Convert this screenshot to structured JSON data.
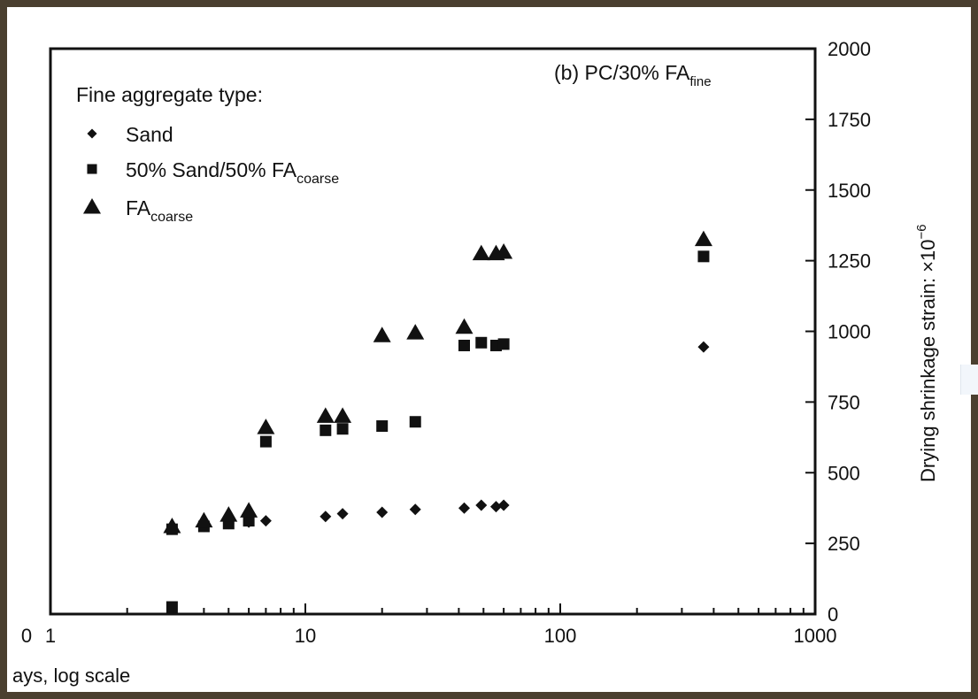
{
  "chart_data": {
    "type": "scatter",
    "title": "(b) PC/30% FA",
    "title_sub": "fine",
    "legend_title": "Fine aggregate type:",
    "legend_position": "top-left",
    "xlabel": "ays, log scale",
    "ylabel": "Drying shrinkage strain: ×10",
    "ylabel_exp": "−6",
    "x_scale": "log",
    "xlim": [
      1,
      1000
    ],
    "ylim": [
      0,
      2000
    ],
    "grid": false,
    "x_tick_labels": [
      "1",
      "10",
      "100",
      "1000"
    ],
    "x_left_cut_label": "0",
    "y_tick_labels": [
      "0",
      "250",
      "500",
      "750",
      "1000",
      "1250",
      "1500",
      "1750",
      "2000"
    ],
    "series": [
      {
        "name": "Sand",
        "name_sub": "",
        "marker": "diamond",
        "x": [
          3,
          4,
          5,
          6,
          7,
          12,
          14,
          20,
          27,
          42,
          49,
          56,
          60,
          365
        ],
        "y": [
          300,
          310,
          320,
          325,
          330,
          345,
          355,
          360,
          370,
          375,
          385,
          380,
          385,
          945
        ]
      },
      {
        "name": "50% Sand/50% FA",
        "name_sub": "coarse",
        "marker": "square",
        "x": [
          3,
          3,
          4,
          5,
          6,
          7,
          12,
          14,
          20,
          27,
          42,
          49,
          56,
          60,
          365
        ],
        "y": [
          25,
          300,
          310,
          320,
          330,
          610,
          650,
          655,
          665,
          680,
          950,
          960,
          950,
          955,
          1265
        ]
      },
      {
        "name": "FA",
        "name_sub": "coarse",
        "marker": "triangle",
        "x": [
          3,
          4,
          5,
          6,
          7,
          12,
          14,
          20,
          27,
          42,
          49,
          56,
          60,
          365
        ],
        "y": [
          310,
          330,
          350,
          365,
          660,
          700,
          700,
          985,
          995,
          1015,
          1275,
          1275,
          1280,
          1325
        ]
      }
    ]
  },
  "colors": {
    "frame": "#4a3f2f",
    "ink": "#111111"
  }
}
